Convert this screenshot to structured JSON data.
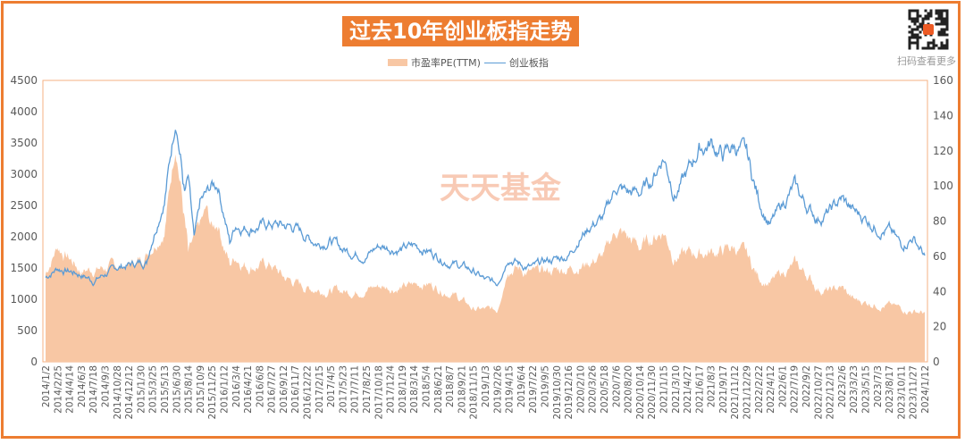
{
  "chart_data": {
    "type": "line",
    "title": "过去10年创业板指走势",
    "legend": [
      "市盈率PE(TTM)",
      "创业板指"
    ],
    "legend_placement": "top",
    "watermark": "天天基金",
    "qr_caption": "扫码查看更多",
    "y_left": {
      "range": [
        0,
        4500
      ],
      "ticks": [
        "0",
        "500",
        "1000",
        "1500",
        "2000",
        "2500",
        "3000",
        "3500",
        "4000",
        "4500"
      ]
    },
    "y_right": {
      "range": [
        0,
        160
      ],
      "ticks": [
        "0",
        "20",
        "40",
        "60",
        "80",
        "100",
        "120",
        "140",
        "160"
      ]
    },
    "categories": [
      "2014/1/2",
      "2014/2/25",
      "2014/4/14",
      "2014/6/3",
      "2014/7/18",
      "2014/9/3",
      "2014/10/28",
      "2014/12/12",
      "2015/1/30",
      "2015/3/25",
      "2015/5/13",
      "2015/6/30",
      "2015/8/14",
      "2015/10/9",
      "2015/11/25",
      "2016/1/12",
      "2016/3/4",
      "2016/4/21",
      "2016/6/8",
      "2016/7/27",
      "2016/9/12",
      "2016/11/7",
      "2016/12/22",
      "2017/2/15",
      "2017/4/5",
      "2017/5/23",
      "2017/7/11",
      "2017/8/25",
      "2017/10/18",
      "2017/12/4",
      "2018/1/19",
      "2018/3/14",
      "2018/5/4",
      "2018/6/21",
      "2018/8/7",
      "2018/9/21",
      "2018/11/15",
      "2019/1/3",
      "2019/2/26",
      "2019/4/15",
      "2019/6/4",
      "2019/7/22",
      "2019/9/5",
      "2019/10/30",
      "2019/12/16",
      "2020/2/10",
      "2020/3/26",
      "2020/5/18",
      "2020/7/6",
      "2020/8/20",
      "2020/10/14",
      "2020/11/30",
      "2021/1/15",
      "2021/3/10",
      "2021/4/27",
      "2021/6/17",
      "2021/8/3",
      "2021/9/17",
      "2021/11/12",
      "2021/12/29",
      "2022/2/22",
      "2022/4/12",
      "2022/6/1",
      "2022/7/19",
      "2022/9/2",
      "2022/10/27",
      "2022/12/13",
      "2023/2/6",
      "2023/3/23",
      "2023/5/15",
      "2023/7/3",
      "2023/8/17",
      "2023/10/11",
      "2023/11/27",
      "2024/1/12"
    ],
    "series": [
      {
        "name": "创业板指",
        "axis": "left",
        "color": "#5b9bd5",
        "points": [
          [
            0,
            1350
          ],
          [
            1,
            1500
          ],
          [
            3,
            1400
          ],
          [
            4,
            1300
          ],
          [
            6,
            1500
          ],
          [
            7,
            1550
          ],
          [
            8.5,
            1600
          ],
          [
            9,
            2000
          ],
          [
            10,
            2600
          ],
          [
            11,
            3950
          ],
          [
            11.7,
            2700
          ],
          [
            12,
            2900
          ],
          [
            12.5,
            1900
          ],
          [
            13,
            2500
          ],
          [
            14,
            2800
          ],
          [
            14.5,
            2850
          ],
          [
            15,
            2400
          ],
          [
            15.5,
            1900
          ],
          [
            16,
            2200
          ],
          [
            17,
            2150
          ],
          [
            19,
            2200
          ],
          [
            21,
            2150
          ],
          [
            22,
            2000
          ],
          [
            23,
            1900
          ],
          [
            24,
            1950
          ],
          [
            25,
            1800
          ],
          [
            26,
            1750
          ],
          [
            27,
            1700
          ],
          [
            28,
            1850
          ],
          [
            30,
            1800
          ],
          [
            31,
            1850
          ],
          [
            32,
            1800
          ],
          [
            34,
            1600
          ],
          [
            36,
            1450
          ],
          [
            37,
            1300
          ],
          [
            38,
            1250
          ],
          [
            39,
            1700
          ],
          [
            40,
            1550
          ],
          [
            41,
            1500
          ],
          [
            42,
            1600
          ],
          [
            44,
            1700
          ],
          [
            45,
            2000
          ],
          [
            46,
            2200
          ],
          [
            47,
            2300
          ],
          [
            48,
            2800
          ],
          [
            49,
            2700
          ],
          [
            50,
            2700
          ],
          [
            51,
            2900
          ],
          [
            52,
            3300
          ],
          [
            53,
            2700
          ],
          [
            54,
            3000
          ],
          [
            55,
            3400
          ],
          [
            56,
            3500
          ],
          [
            57,
            3300
          ],
          [
            58,
            3450
          ],
          [
            59,
            3300
          ],
          [
            60,
            2600
          ],
          [
            61,
            2200
          ],
          [
            62,
            2500
          ],
          [
            63,
            2800
          ],
          [
            64,
            2500
          ],
          [
            65,
            2300
          ],
          [
            66,
            2400
          ],
          [
            67,
            2600
          ],
          [
            68,
            2400
          ],
          [
            69,
            2300
          ],
          [
            70,
            2150
          ],
          [
            71,
            2100
          ],
          [
            72,
            1850
          ],
          [
            73,
            2000
          ],
          [
            74,
            1700
          ]
        ]
      },
      {
        "name": "市盈率PE(TTM)",
        "axis": "right",
        "color": "#f8c7a4",
        "points": [
          [
            0,
            50
          ],
          [
            1,
            66
          ],
          [
            3,
            52
          ],
          [
            7,
            55
          ],
          [
            8,
            58
          ],
          [
            10,
            75
          ],
          [
            11,
            128
          ],
          [
            12,
            60
          ],
          [
            13.5,
            85
          ],
          [
            14,
            75
          ],
          [
            14.5,
            80
          ],
          [
            15.5,
            55
          ],
          [
            16,
            60
          ],
          [
            17,
            55
          ],
          [
            19,
            55
          ],
          [
            20,
            48
          ],
          [
            22,
            42
          ],
          [
            25,
            40
          ],
          [
            26,
            40
          ],
          [
            28,
            43
          ],
          [
            30,
            42
          ],
          [
            32,
            45
          ],
          [
            34,
            40
          ],
          [
            35,
            35
          ],
          [
            36,
            30
          ],
          [
            38,
            29
          ],
          [
            39,
            55
          ],
          [
            41,
            50
          ],
          [
            43,
            52
          ],
          [
            45,
            55
          ],
          [
            47,
            60
          ],
          [
            48,
            75
          ],
          [
            50,
            65
          ],
          [
            51,
            70
          ],
          [
            52,
            75
          ],
          [
            53,
            60
          ],
          [
            55,
            62
          ],
          [
            57,
            63
          ],
          [
            58,
            65
          ],
          [
            59,
            60
          ],
          [
            60,
            48
          ],
          [
            61,
            45
          ],
          [
            63,
            55
          ],
          [
            64,
            50
          ],
          [
            65,
            42
          ],
          [
            66,
            40
          ],
          [
            67,
            42
          ],
          [
            68,
            35
          ],
          [
            70,
            33
          ],
          [
            71,
            32
          ],
          [
            72,
            30
          ],
          [
            74,
            28
          ]
        ]
      }
    ]
  }
}
